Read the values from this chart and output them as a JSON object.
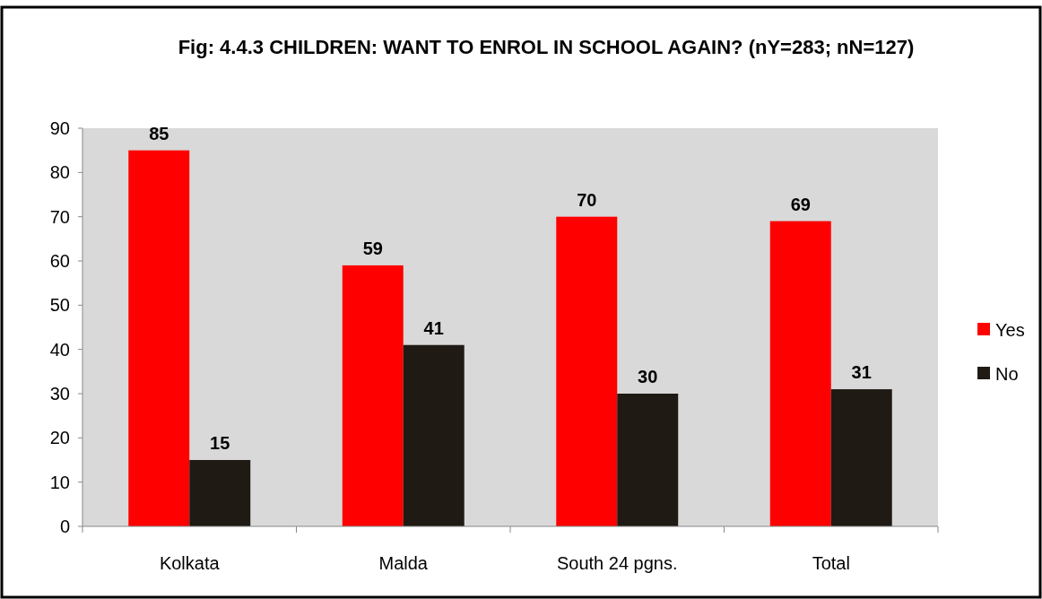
{
  "chart_data": {
    "type": "bar",
    "title": "Fig: 4.4.3 CHILDREN: WANT TO ENROL IN SCHOOL AGAIN? (nY=283; nN=127)",
    "categories": [
      "Kolkata",
      "Malda",
      "South 24 pgns.",
      "Total"
    ],
    "series": [
      {
        "name": "Yes",
        "color": "#ff0000",
        "values": [
          85,
          59,
          70,
          69
        ]
      },
      {
        "name": "No",
        "color": "#1f1a14",
        "values": [
          15,
          41,
          30,
          31
        ]
      }
    ],
    "ylim": [
      0,
      90
    ],
    "yticks": [
      0,
      10,
      20,
      30,
      40,
      50,
      60,
      70,
      80,
      90
    ],
    "data_labels": true,
    "legend": "right",
    "grid": false
  }
}
